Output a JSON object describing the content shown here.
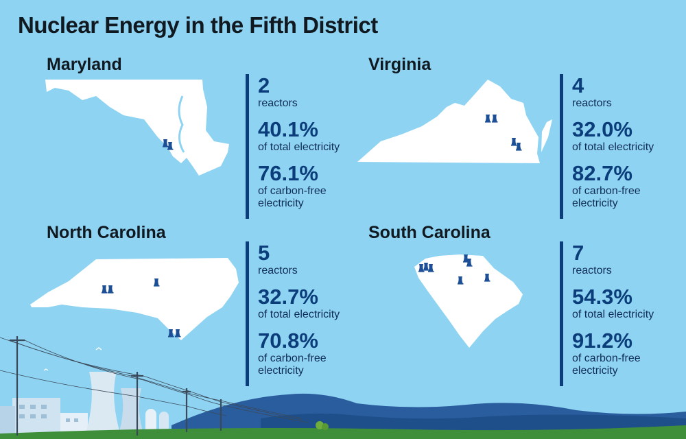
{
  "title": "Nuclear Energy in the Fifth District",
  "colors": {
    "background": "#8fd3f2",
    "accent": "#0a3d7a",
    "land": "#ffffff"
  },
  "states": [
    {
      "name": "Maryland",
      "reactors": "2",
      "reactors_label": "reactors",
      "total_pct": "40.1%",
      "total_label": "of total electricity",
      "carbon_pct": "76.1%",
      "carbon_label": "of carbon-free electricity"
    },
    {
      "name": "Virginia",
      "reactors": "4",
      "reactors_label": "reactors",
      "total_pct": "32.0%",
      "total_label": "of total electricity",
      "carbon_pct": "82.7%",
      "carbon_label": "of carbon-free electricity"
    },
    {
      "name": "North Carolina",
      "reactors": "5",
      "reactors_label": "reactors",
      "total_pct": "32.7%",
      "total_label": "of total electricity",
      "carbon_pct": "70.8%",
      "carbon_label": "of carbon-free electricity"
    },
    {
      "name": "South Carolina",
      "reactors": "7",
      "reactors_label": "reactors",
      "total_pct": "54.3%",
      "total_label": "of total electricity",
      "carbon_pct": "91.2%",
      "carbon_label": "of carbon-free electricity"
    }
  ],
  "icons": {
    "reactor": "cooling-tower-icon",
    "scene": "nuclear-plant-landscape"
  }
}
